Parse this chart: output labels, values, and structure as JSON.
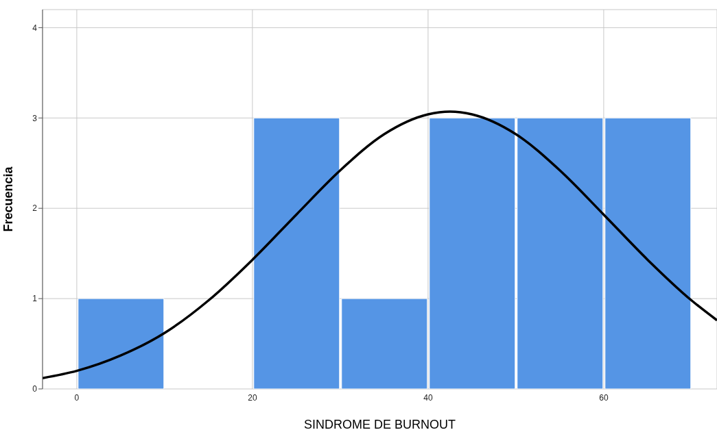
{
  "chart_data": {
    "type": "histogram",
    "xlabel": "SINDROME DE BURNOUT",
    "ylabel": "Frecuencia",
    "bins": [
      0,
      10,
      20,
      30,
      40,
      50,
      60,
      70
    ],
    "values": [
      1,
      0,
      3,
      1,
      3,
      3,
      3
    ],
    "color": "#5595e5",
    "series": [
      {
        "type": "line",
        "color": "#000000",
        "x": [
          -3.9,
          0,
          5,
          10,
          15,
          20,
          25,
          30,
          35,
          40,
          42.5,
          45,
          50,
          55,
          60,
          65,
          70,
          72.9
        ],
        "values": [
          0.12,
          0.2,
          0.37,
          0.62,
          0.98,
          1.43,
          1.93,
          2.42,
          2.82,
          3.04,
          3.07,
          3.04,
          2.82,
          2.42,
          1.93,
          1.43,
          0.98,
          0.76
        ]
      }
    ],
    "xlim": [
      -3.9,
      72.9
    ],
    "xticks": [
      0,
      20,
      40,
      60
    ],
    "ylim": [
      0,
      4.2
    ],
    "yticks": [
      0,
      1,
      2,
      3,
      4
    ],
    "grid": true,
    "marker": "none",
    "line_style": "solid"
  }
}
